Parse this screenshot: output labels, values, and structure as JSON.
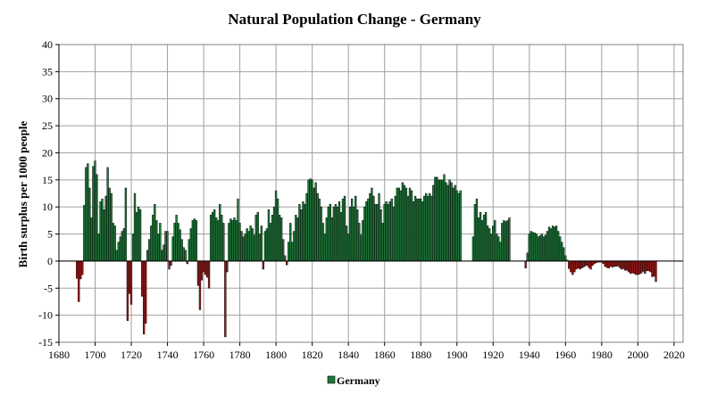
{
  "chart_data": {
    "type": "bar",
    "title": "Natural Population Change - Germany",
    "xlabel": "",
    "ylabel": "Birth surplus per 1000 people",
    "xlim": [
      1680,
      2025
    ],
    "ylim": [
      -15,
      40
    ],
    "x_ticks": [
      1680,
      1700,
      1720,
      1740,
      1760,
      1780,
      1800,
      1820,
      1840,
      1860,
      1880,
      1900,
      1920,
      1940,
      1960,
      1980,
      2000,
      2020
    ],
    "y_ticks": [
      -15,
      -10,
      -5,
      0,
      5,
      10,
      15,
      20,
      25,
      30,
      35,
      40
    ],
    "grid": true,
    "legend": {
      "position": "bottom-center",
      "entries": [
        "Germany"
      ]
    },
    "colors": {
      "positive": "#1f7a3a",
      "negative": "#a01818",
      "bar_edge": "#000000",
      "grid": "#a0a0a0"
    },
    "series": [
      {
        "name": "Germany",
        "start_year": 1690,
        "values": [
          -3.2,
          -7.5,
          -3.3,
          -2.5,
          10.3,
          17.3,
          18.0,
          13.5,
          8.0,
          17.5,
          18.5,
          16.0,
          5.0,
          11.0,
          11.5,
          9.5,
          12.0,
          17.3,
          13.5,
          12.5,
          7.0,
          6.5,
          2.0,
          3.5,
          4.5,
          5.5,
          6.0,
          13.5,
          -11.0,
          -6.0,
          -8.0,
          5.0,
          12.5,
          9.0,
          10.0,
          9.5,
          -6.5,
          -13.5,
          -11.5,
          2.0,
          4.0,
          6.5,
          8.5,
          10.5,
          7.5,
          5.0,
          7.0,
          2.0,
          3.0,
          5.5,
          5.5,
          -1.5,
          -0.8,
          4.5,
          7.0,
          8.5,
          7.0,
          5.8,
          4.0,
          2.5,
          2.0,
          -0.5,
          4.0,
          6.0,
          7.5,
          7.8,
          7.5,
          -4.5,
          -9.0,
          -3.5,
          -2.0,
          -2.5,
          -3.0,
          -5.0,
          8.5,
          9.0,
          9.5,
          8.0,
          7.5,
          10.5,
          8.5,
          7.0,
          -14.0,
          -2.0,
          7.0,
          7.8,
          7.5,
          8.0,
          7.5,
          11.5,
          7.0,
          5.5,
          4.5,
          5.0,
          6.0,
          5.5,
          6.5,
          6.0,
          4.8,
          8.5,
          9.0,
          5.0,
          6.5,
          -1.5,
          5.5,
          6.0,
          9.5,
          7.0,
          8.5,
          10.0,
          13.0,
          11.5,
          8.5,
          8.0,
          4.0,
          1.0,
          -0.7,
          3.5,
          7.0,
          3.5,
          5.5,
          8.5,
          8.0,
          10.5,
          9.5,
          11.0,
          10.5,
          12.5,
          15.0,
          15.2,
          15.0,
          13.5,
          14.5,
          12.5,
          11.5,
          10.0,
          7.0,
          5.0,
          8.0,
          10.0,
          10.5,
          8.0,
          10.0,
          10.5,
          10.0,
          11.0,
          9.0,
          11.5,
          12.0,
          6.5,
          5.0,
          10.0,
          11.5,
          10.0,
          12.0,
          9.5,
          7.0,
          4.8,
          7.5,
          10.0,
          11.0,
          11.5,
          12.5,
          13.5,
          12.0,
          10.5,
          10.5,
          12.5,
          9.5,
          7.0,
          10.5,
          11.0,
          10.5,
          11.0,
          11.5,
          10.0,
          12.0,
          13.5,
          13.5,
          13.0,
          14.5,
          14.0,
          13.5,
          12.0,
          13.5,
          13.0,
          11.0,
          12.0,
          11.5,
          11.5,
          11.5,
          11.0,
          12.0,
          12.5,
          12.0,
          12.5,
          12.0,
          14.0,
          15.5,
          15.5,
          15.0,
          15.0,
          15.0,
          16.0,
          14.5,
          14.0,
          15.0,
          14.5,
          13.5,
          14.0,
          13.0,
          12.5,
          13.0,
          null,
          null,
          null,
          null,
          null,
          null,
          4.5,
          10.5,
          11.5,
          8.0,
          9.0,
          7.5,
          8.5,
          9.0,
          6.5,
          6.0,
          5.0,
          6.5,
          7.5,
          5.0,
          4.5,
          3.5,
          7.0,
          7.5,
          7.3,
          7.5,
          8.0,
          null,
          null,
          null,
          null,
          null,
          null,
          null,
          null,
          -1.3,
          1.5,
          5.0,
          5.5,
          5.3,
          5.2,
          5.0,
          4.5,
          4.7,
          5.0,
          4.5,
          4.8,
          5.5,
          6.3,
          6.0,
          6.5,
          6.3,
          6.5,
          5.5,
          4.5,
          3.5,
          2.5,
          1.0,
          0.2,
          -1.4,
          -2.0,
          -2.5,
          -2.0,
          -1.5,
          -1.3,
          -1.5,
          -1.3,
          -1.1,
          -0.9,
          -0.8,
          -1.2,
          -1.5,
          -0.8,
          -0.5,
          -0.3,
          -0.2,
          -0.2,
          -0.2,
          -0.5,
          -1.0,
          -1.2,
          -1.3,
          -1.0,
          -1.1,
          -1.0,
          -1.0,
          -0.9,
          -1.2,
          -1.5,
          -1.4,
          -1.7,
          -1.7,
          -2.0,
          -2.3,
          -2.2,
          -2.3,
          -2.5,
          -2.5,
          -2.4,
          -2.2,
          -1.9,
          -2.3,
          -1.8,
          -1.8,
          -2.0,
          -2.9,
          -2.8,
          -3.8
        ]
      }
    ]
  }
}
